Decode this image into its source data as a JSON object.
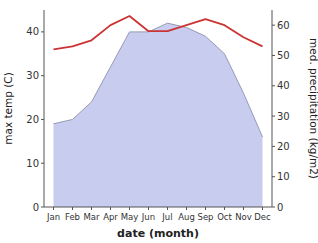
{
  "chart_data": {
    "type": "line",
    "xlabel": "date (month)",
    "ylabel": "max temp (C)",
    "y2label": "med. precipitation (kg/m2)",
    "categories": [
      "Jan",
      "Feb",
      "Mar",
      "Apr",
      "May",
      "Jun",
      "Jul",
      "Aug",
      "Sep",
      "Oct",
      "Nov",
      "Dec"
    ],
    "series": [
      {
        "type": "area",
        "color": "#c8ccee",
        "values": [
          19,
          20,
          24,
          32,
          40,
          40,
          42,
          41,
          39,
          35,
          26,
          16
        ]
      },
      {
        "type": "line",
        "color": "#cc3333",
        "axis": "y2",
        "values": [
          52,
          53,
          55,
          60,
          63,
          58,
          58,
          60,
          62,
          60,
          56,
          53
        ]
      }
    ],
    "ylim": [
      0,
      45
    ],
    "yticks": [
      0,
      10,
      20,
      30,
      40
    ],
    "y2lim": [
      0,
      65
    ],
    "y2ticks": [
      0,
      10,
      20,
      30,
      40,
      50,
      60
    ],
    "grid": false
  }
}
